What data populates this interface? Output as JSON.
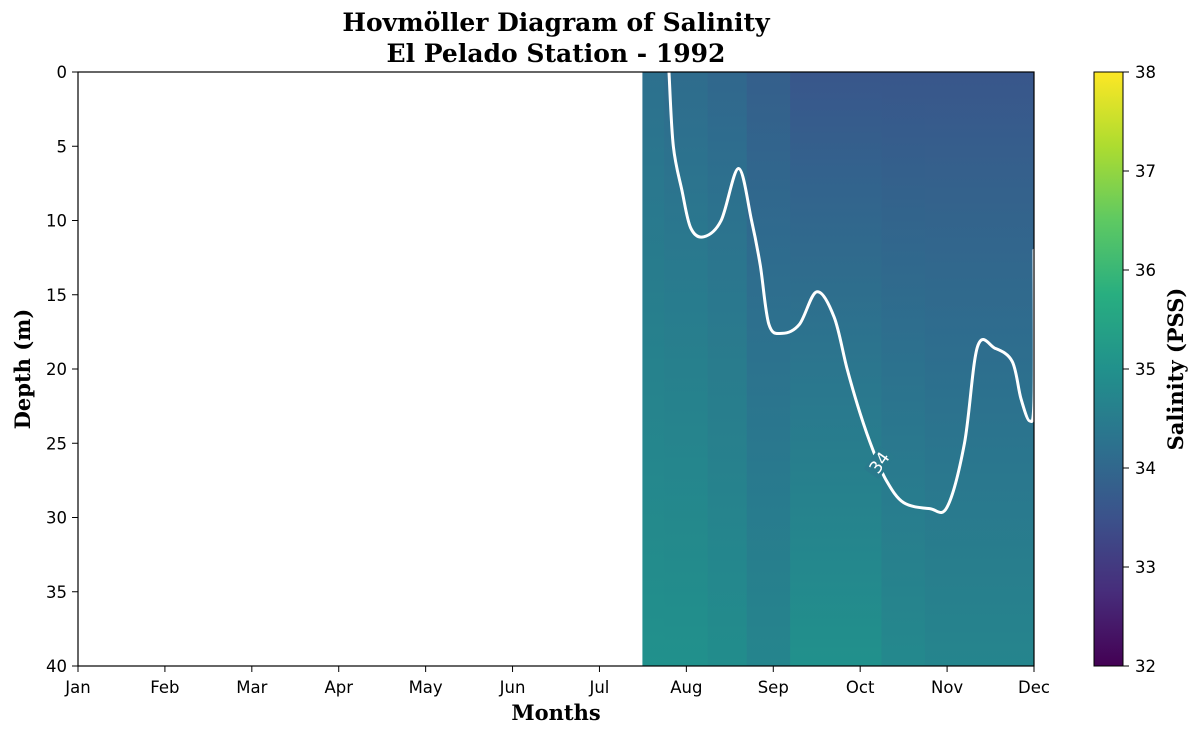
{
  "chart_data": {
    "type": "heatmap",
    "title": "Hovmöller Diagram of Salinity",
    "subtitle": "El Pelado Station - 1992",
    "xlabel": "Months",
    "ylabel": "Depth (m)",
    "x_ticks": [
      "Jan",
      "Feb",
      "Mar",
      "Apr",
      "May",
      "Jun",
      "Jul",
      "Aug",
      "Sep",
      "Oct",
      "Nov",
      "Dec"
    ],
    "y_ticks": [
      0,
      5,
      10,
      15,
      20,
      25,
      30,
      35,
      40
    ],
    "ylim": [
      40,
      0
    ],
    "y_inverted": true,
    "data_start_month": 6.5,
    "data_end_month": 11,
    "salinity_columns": [
      {
        "month": 6.5,
        "surface": 34.2,
        "bottom": 35.0
      },
      {
        "month": 7.0,
        "surface": 34.1,
        "bottom": 35.0
      },
      {
        "month": 7.5,
        "surface": 34.0,
        "bottom": 34.9
      },
      {
        "month": 7.9,
        "surface": 33.8,
        "bottom": 34.7
      },
      {
        "month": 8.5,
        "surface": 33.6,
        "bottom": 35.0
      },
      {
        "month": 9.0,
        "surface": 33.6,
        "bottom": 35.0
      },
      {
        "month": 9.5,
        "surface": 33.6,
        "bottom": 34.8
      },
      {
        "month": 10.0,
        "surface": 33.6,
        "bottom": 34.7
      },
      {
        "month": 10.5,
        "surface": 33.6,
        "bottom": 34.7
      },
      {
        "month": 11.0,
        "surface": 33.6,
        "bottom": 34.7
      }
    ],
    "contour": {
      "level": 34,
      "label": "34",
      "points": [
        [
          6.8,
          0
        ],
        [
          6.85,
          5
        ],
        [
          6.95,
          8
        ],
        [
          7.05,
          10.5
        ],
        [
          7.2,
          11.1
        ],
        [
          7.4,
          10
        ],
        [
          7.6,
          6.5
        ],
        [
          7.75,
          10
        ],
        [
          7.85,
          13
        ],
        [
          7.95,
          17
        ],
        [
          8.1,
          17.6
        ],
        [
          8.3,
          17
        ],
        [
          8.5,
          14.8
        ],
        [
          8.7,
          16.5
        ],
        [
          8.85,
          20
        ],
        [
          9.0,
          23
        ],
        [
          9.15,
          25.5
        ],
        [
          9.3,
          27.5
        ],
        [
          9.5,
          29
        ],
        [
          9.8,
          29.4
        ],
        [
          10.0,
          29.3
        ],
        [
          10.2,
          25
        ],
        [
          10.35,
          18.5
        ],
        [
          10.55,
          18.6
        ],
        [
          10.75,
          19.5
        ],
        [
          10.85,
          22
        ],
        [
          10.95,
          23.5
        ],
        [
          11.0,
          22
        ],
        [
          11.0,
          12
        ]
      ]
    },
    "colorbar": {
      "label": "Salinity (PSS)",
      "ticks": [
        32,
        33,
        34,
        35,
        36,
        37,
        38
      ],
      "range": [
        32,
        38
      ],
      "colormap": "viridis",
      "stops": [
        "#440154",
        "#472d7b",
        "#3b528b",
        "#2c728e",
        "#21918c",
        "#28ae80",
        "#5ec962",
        "#addc30",
        "#fde725"
      ]
    },
    "grid": false
  }
}
